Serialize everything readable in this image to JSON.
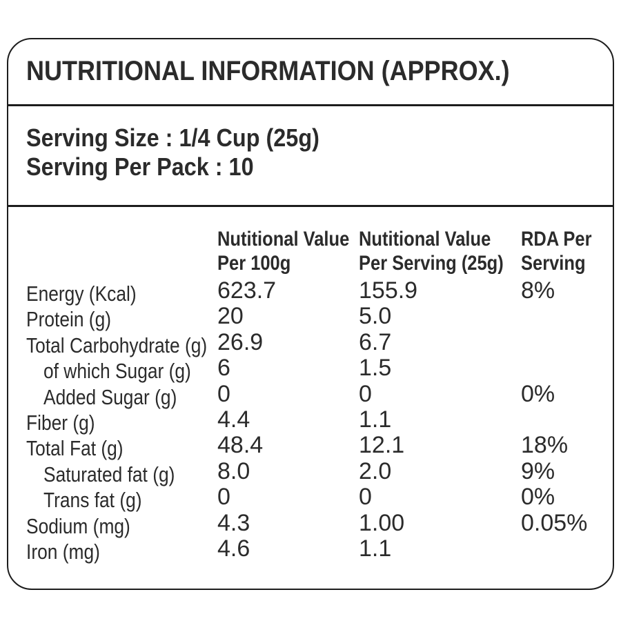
{
  "title": "NUTRITIONAL INFORMATION (APPROX.)",
  "serving": {
    "size_line": "Serving Size : 1/4 Cup (25g)",
    "pack_line": "Serving Per Pack : 10"
  },
  "table": {
    "headers": [
      {
        "line1": "Nutitional Value",
        "line2": "Per 100g"
      },
      {
        "line1": "Nutitional Value",
        "line2": "Per Serving (25g)"
      },
      {
        "line1": "RDA Per",
        "line2": "Serving"
      }
    ],
    "rows": [
      {
        "nutrient": "Energy (Kcal)",
        "indent": false,
        "per_100g": "623.7",
        "per_serving": "155.9",
        "rda": "8%"
      },
      {
        "nutrient": "Protein (g)",
        "indent": false,
        "per_100g": "20",
        "per_serving": "5.0",
        "rda": ""
      },
      {
        "nutrient": "Total Carbohydrate (g)",
        "indent": false,
        "per_100g": "26.9",
        "per_serving": "6.7",
        "rda": ""
      },
      {
        "nutrient": "of which Sugar (g)",
        "indent": true,
        "per_100g": "6",
        "per_serving": "1.5",
        "rda": ""
      },
      {
        "nutrient": "Added Sugar (g)",
        "indent": true,
        "per_100g": "0",
        "per_serving": "0",
        "rda": "0%"
      },
      {
        "nutrient": "Fiber (g)",
        "indent": false,
        "per_100g": "4.4",
        "per_serving": "1.1",
        "rda": ""
      },
      {
        "nutrient": "Total Fat (g)",
        "indent": false,
        "per_100g": "48.4",
        "per_serving": "12.1",
        "rda": "18%"
      },
      {
        "nutrient": "Saturated fat (g)",
        "indent": true,
        "per_100g": "8.0",
        "per_serving": "2.0",
        "rda": "9%"
      },
      {
        "nutrient": "Trans fat (g)",
        "indent": true,
        "per_100g": "0",
        "per_serving": "0",
        "rda": "0%"
      },
      {
        "nutrient": "Sodium (mg)",
        "indent": false,
        "per_100g": "4.3",
        "per_serving": "1.00",
        "rda": "0.05%"
      },
      {
        "nutrient": "Iron (mg)",
        "indent": false,
        "per_100g": "4.6",
        "per_serving": "1.1",
        "rda": ""
      }
    ]
  },
  "colors": {
    "text": "#2b2b2b",
    "line": "#1c1c1c",
    "background": "#ffffff"
  }
}
